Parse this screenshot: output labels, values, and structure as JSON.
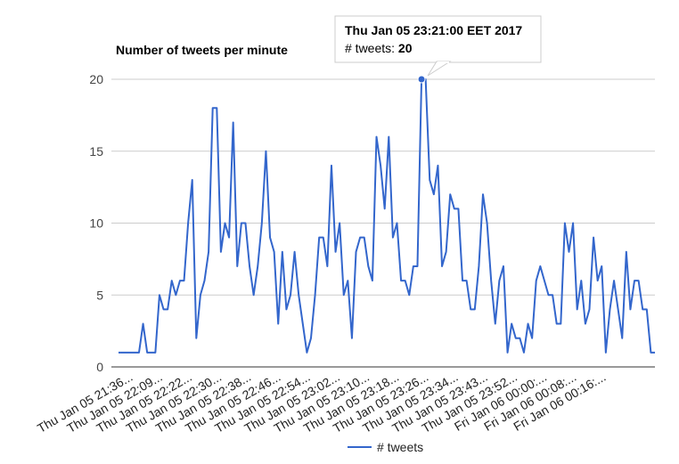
{
  "chart_data": {
    "type": "line",
    "title": "Number of tweets per minute",
    "ylim": [
      0,
      20
    ],
    "yticks": [
      0,
      5,
      10,
      15,
      20
    ],
    "grid": true,
    "legend_position": "bottom",
    "color": "#3366cc",
    "x_tick_labels": [
      "Thu Jan 05 21:36...",
      "Thu Jan 05 22:09...",
      "Thu Jan 05 22:22...",
      "Thu Jan 05 22:30...",
      "Thu Jan 05 22:38...",
      "Thu Jan 05 22:46...",
      "Thu Jan 05 22:54...",
      "Thu Jan 05 23:02...",
      "Thu Jan 05 23:10...",
      "Thu Jan 05 23:18...",
      "Thu Jan 05 23:26...",
      "Thu Jan 05 23:34...",
      "Thu Jan 05 23:43...",
      "Thu Jan 05 23:52...",
      "Fri Jan 06 00:00:...",
      "Fri Jan 06 00:08:...",
      "Fri Jan 06 00:16:..."
    ],
    "series": [
      {
        "name": "# tweets",
        "values": [
          1,
          1,
          1,
          1,
          1,
          1,
          3,
          1,
          1,
          1,
          5,
          4,
          4,
          6,
          5,
          6,
          6,
          10,
          13,
          2,
          5,
          6,
          8,
          18,
          18,
          8,
          10,
          9,
          17,
          7,
          10,
          10,
          7,
          5,
          7,
          10,
          15,
          9,
          8,
          3,
          8,
          4,
          5,
          8,
          5,
          3,
          1,
          2,
          5,
          9,
          9,
          7,
          14,
          8,
          10,
          5,
          6,
          2,
          8,
          9,
          9,
          7,
          6,
          16,
          14,
          11,
          16,
          9,
          10,
          6,
          6,
          5,
          7,
          7,
          20,
          20,
          13,
          12,
          14,
          7,
          8,
          12,
          11,
          11,
          6,
          6,
          4,
          4,
          7,
          12,
          10,
          6,
          3,
          6,
          7,
          1,
          3,
          2,
          2,
          1,
          3,
          2,
          6,
          7,
          6,
          5,
          5,
          3,
          3,
          10,
          8,
          10,
          4,
          6,
          3,
          4,
          9,
          6,
          7,
          1,
          4,
          6,
          4,
          2,
          8,
          4,
          6,
          6,
          4,
          4,
          1,
          1
        ]
      }
    ],
    "highlighted_point": {
      "index": 74,
      "label": "Thu Jan 05 23:21:00 EET 2017",
      "value_prefix": "# tweets: ",
      "value": 20
    }
  }
}
